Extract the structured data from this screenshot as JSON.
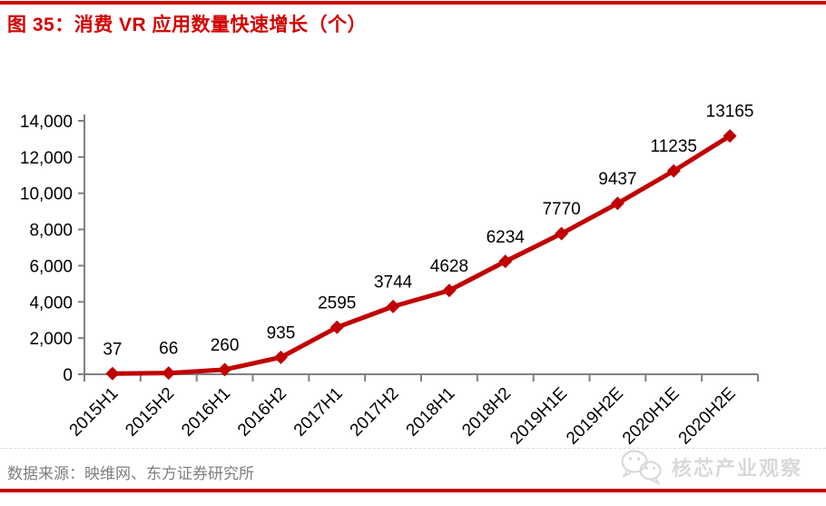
{
  "figure": {
    "title": "图 35：消费 VR 应用数量快速增长（个）"
  },
  "chart_data": {
    "type": "line",
    "title": "图 35：消费 VR 应用数量快速增长（个）",
    "categories": [
      "2015H1",
      "2015H2",
      "2016H1",
      "2016H2",
      "2017H1",
      "2017H2",
      "2018H1",
      "2018H2",
      "2019H1E",
      "2019H2E",
      "2020H1E",
      "2020H2E"
    ],
    "values": [
      37,
      66,
      260,
      935,
      2595,
      3744,
      4628,
      6234,
      7770,
      9437,
      11235,
      13165
    ],
    "data_labels": [
      "37",
      "66",
      "260",
      "935",
      "2595",
      "3744",
      "4628",
      "6234",
      "7770",
      "9437",
      "11235",
      "13165"
    ],
    "xlabel": "",
    "ylabel": "",
    "ylim": [
      0,
      14000
    ],
    "ytick_step": 2000,
    "ytick_labels": [
      "0",
      "2,000",
      "4,000",
      "6,000",
      "8,000",
      "10,000",
      "12,000",
      "14,000"
    ],
    "grid": false,
    "legend": "none",
    "marker": "diamond",
    "x_tick_rotation": 45
  },
  "footer": {
    "source": "数据来源：映维网、东方证券研究所"
  },
  "watermark": {
    "icon": "wechat-icon",
    "name": "核芯产业观察"
  },
  "colors": {
    "accent_red": "#d40000",
    "series_red": "#c00000",
    "axis_gray": "#808080",
    "label_black": "#000000",
    "source_gray": "#7f7f7f",
    "watermark_gray": "#d9d9d9"
  }
}
